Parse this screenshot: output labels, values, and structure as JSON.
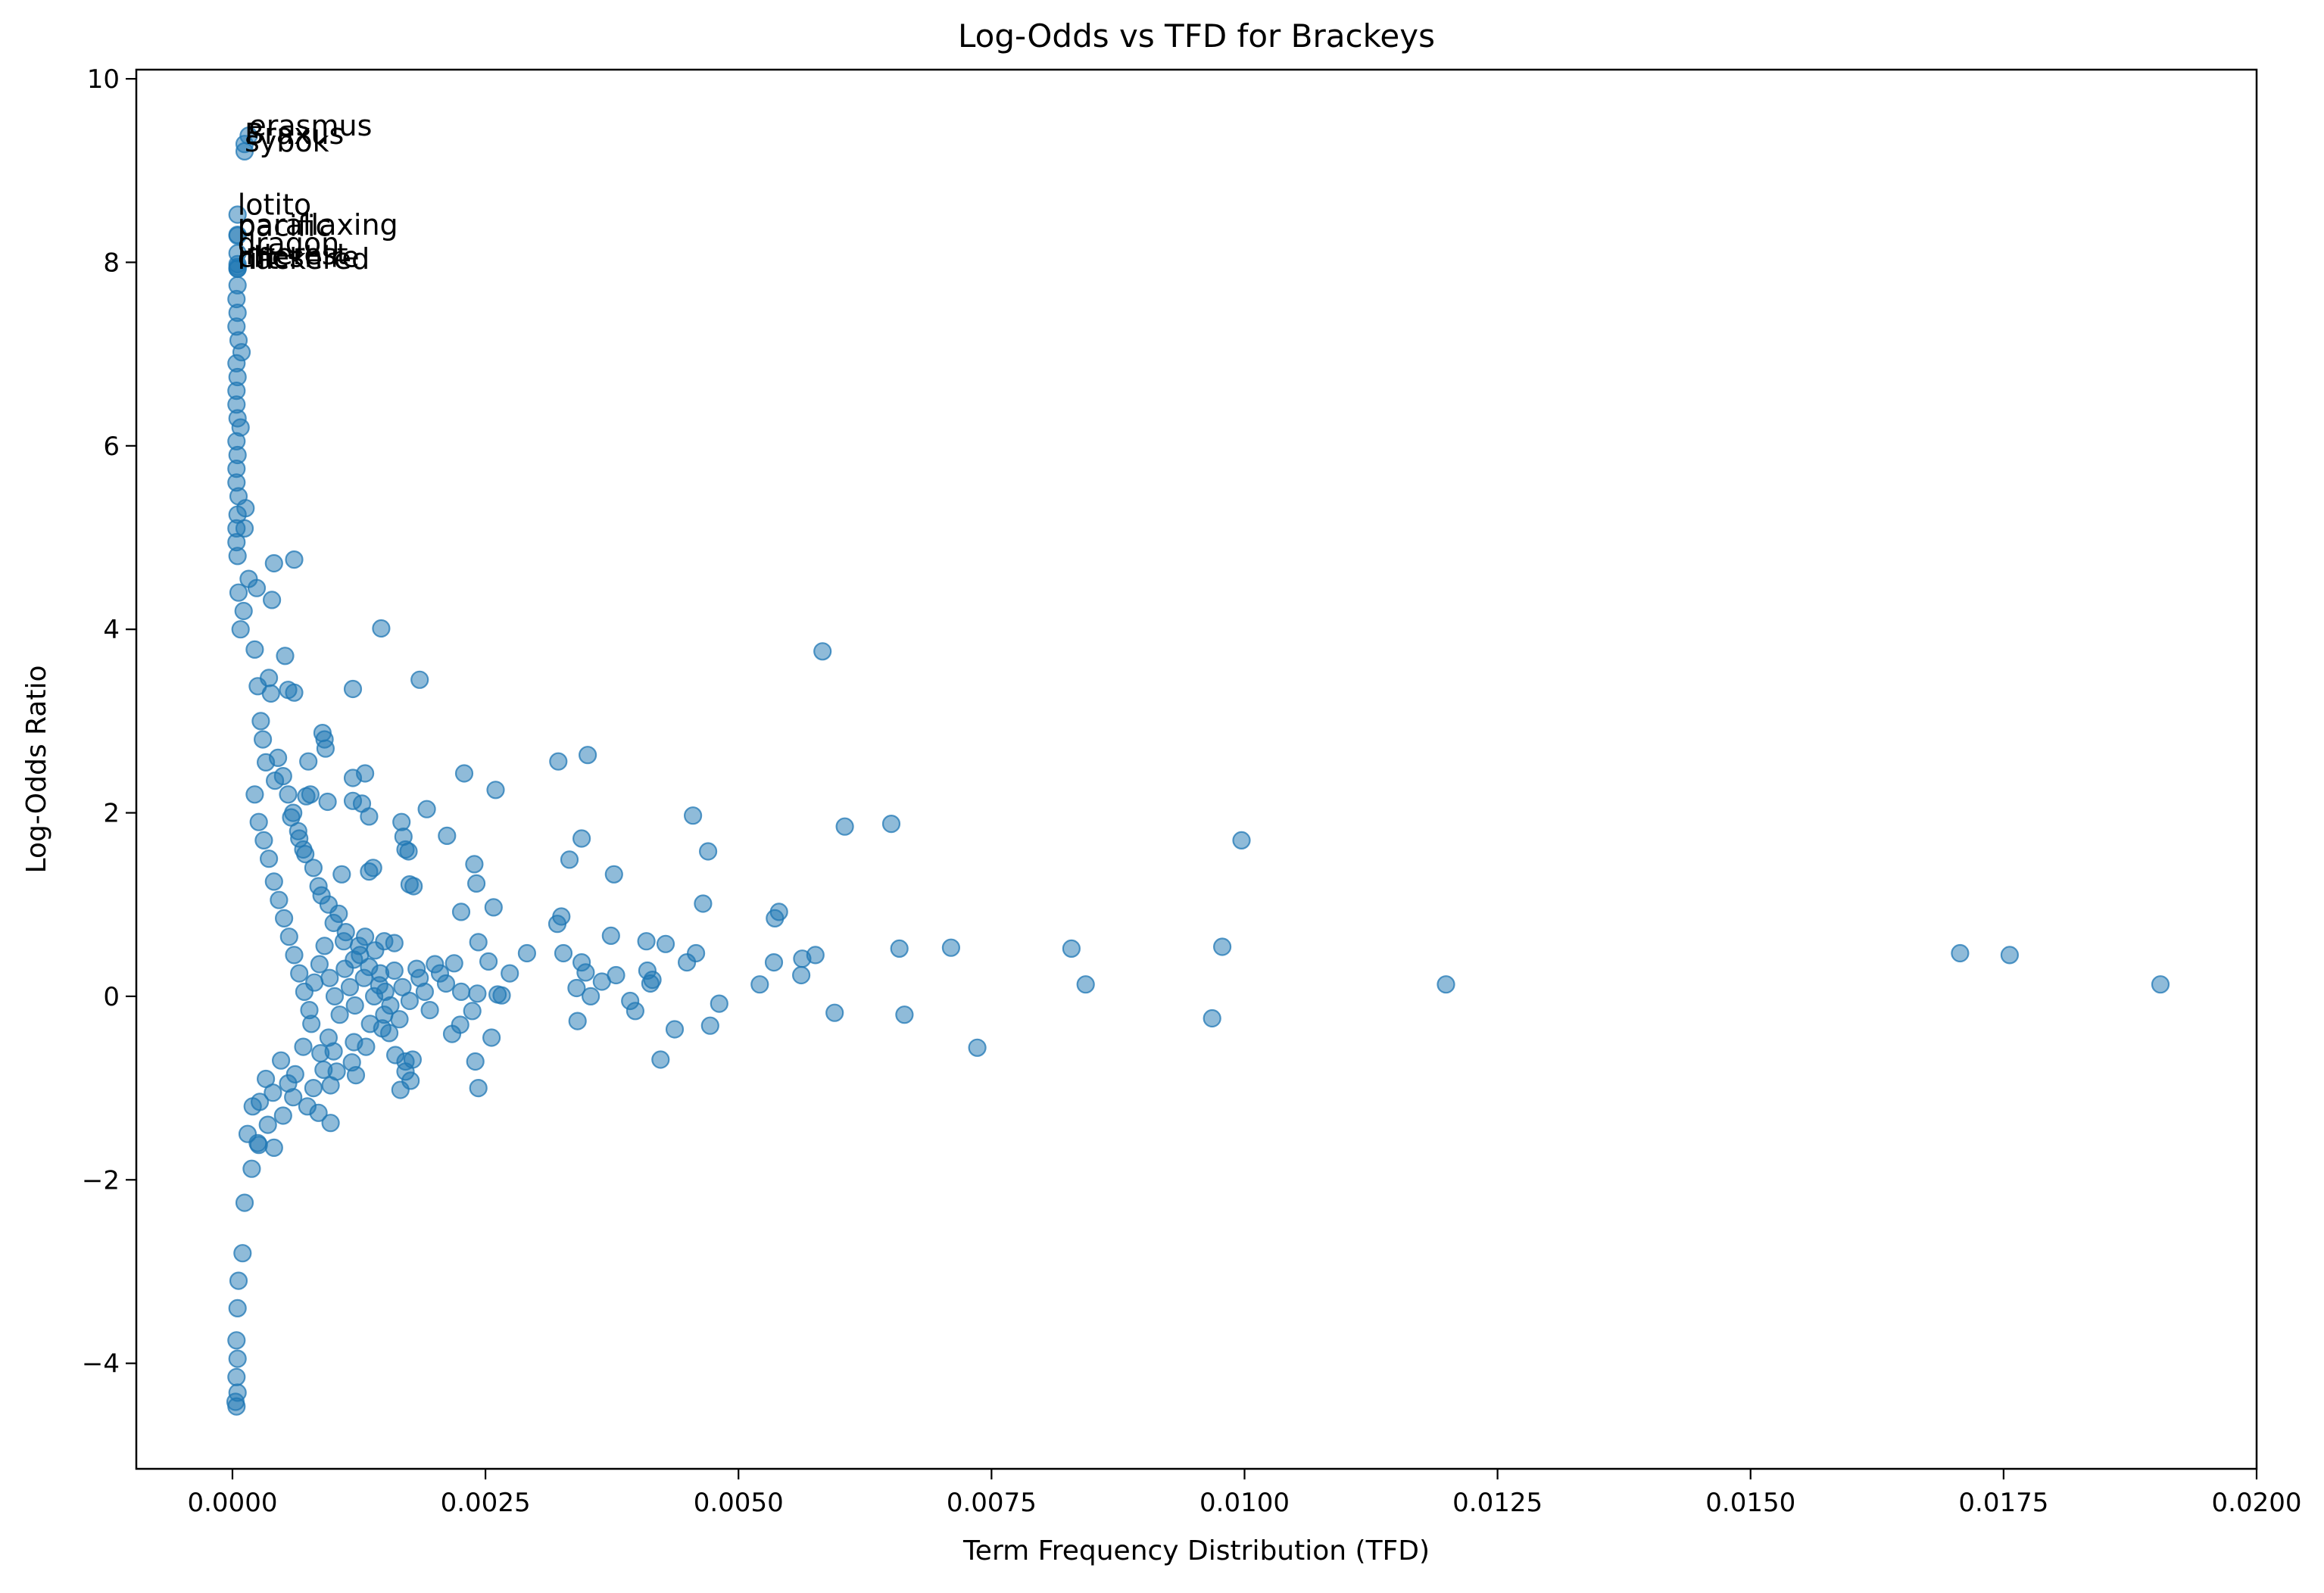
{
  "chart_data": {
    "type": "scatter",
    "title": "Log-Odds vs TFD for Brackeys",
    "xlabel": "Term Frequency Distribution (TFD)",
    "ylabel": "Log-Odds Ratio",
    "xlim": [
      -0.00095,
      0.02
    ],
    "ylim": [
      -5.15,
      10.1
    ],
    "xticks": [
      0.0,
      0.0025,
      0.005,
      0.0075,
      0.01,
      0.0125,
      0.015,
      0.0175,
      0.02
    ],
    "xtick_labels": [
      "0.0000",
      "0.0025",
      "0.0050",
      "0.0075",
      "0.0100",
      "0.0125",
      "0.0150",
      "0.0175",
      "0.0200"
    ],
    "yticks": [
      -4,
      -2,
      0,
      2,
      4,
      6,
      8,
      10
    ],
    "ytick_labels": [
      "−4",
      "−2",
      "0",
      "2",
      "4",
      "6",
      "8",
      "10"
    ],
    "grid": false,
    "color": "#1f77b4",
    "alpha": 0.5,
    "annotations": [
      {
        "text": "erasmus",
        "x": 0.00016,
        "y": 9.38
      },
      {
        "text": "Braxus",
        "x": 0.00012,
        "y": 9.29
      },
      {
        "text": "sybok",
        "x": 0.00012,
        "y": 9.21
      },
      {
        "text": "lotito",
        "x": 5e-05,
        "y": 8.52
      },
      {
        "text": "parallaxing",
        "x": 5e-05,
        "y": 8.3
      },
      {
        "text": "pacific",
        "x": 5e-05,
        "y": 8.29
      },
      {
        "text": "dragon",
        "x": 5e-05,
        "y": 8.1
      },
      {
        "text": "interest",
        "x": 5e-05,
        "y": 7.98
      },
      {
        "text": "cheshire",
        "x": 5e-05,
        "y": 7.95
      },
      {
        "text": "hackered",
        "x": 5e-05,
        "y": 7.93
      },
      {
        "text": "rift",
        "x": 5e-05,
        "y": 7.93
      }
    ],
    "series": [
      {
        "points": [
          [
            0.00016,
            9.38
          ],
          [
            0.00012,
            9.29
          ],
          [
            0.00012,
            9.21
          ],
          [
            5e-05,
            8.52
          ],
          [
            5e-05,
            8.3
          ],
          [
            5e-05,
            8.29
          ],
          [
            5e-05,
            8.1
          ],
          [
            5e-05,
            7.98
          ],
          [
            5e-05,
            7.95
          ],
          [
            5e-05,
            7.93
          ],
          [
            5e-05,
            7.93
          ],
          [
            5e-05,
            7.75
          ],
          [
            4e-05,
            7.6
          ],
          [
            5e-05,
            7.45
          ],
          [
            4e-05,
            7.3
          ],
          [
            6e-05,
            7.15
          ],
          [
            9e-05,
            7.02
          ],
          [
            4e-05,
            6.9
          ],
          [
            5e-05,
            6.75
          ],
          [
            4e-05,
            6.6
          ],
          [
            4e-05,
            6.45
          ],
          [
            5e-05,
            6.3
          ],
          [
            8e-05,
            6.2
          ],
          [
            4e-05,
            6.05
          ],
          [
            5e-05,
            5.9
          ],
          [
            4e-05,
            5.75
          ],
          [
            4e-05,
            5.6
          ],
          [
            6e-05,
            5.45
          ],
          [
            0.00013,
            5.32
          ],
          [
            5e-05,
            5.25
          ],
          [
            4e-05,
            5.1
          ],
          [
            0.00012,
            5.1
          ],
          [
            4e-05,
            4.95
          ],
          [
            5e-05,
            4.8
          ],
          [
            0.00041,
            4.72
          ],
          [
            0.00061,
            4.76
          ],
          [
            0.00016,
            4.55
          ],
          [
            0.00024,
            4.45
          ],
          [
            6e-05,
            4.4
          ],
          [
            0.00039,
            4.32
          ],
          [
            0.00011,
            4.2
          ],
          [
            8e-05,
            4.0
          ],
          [
            0.00147,
            4.01
          ],
          [
            0.00022,
            3.78
          ],
          [
            0.00052,
            3.71
          ],
          [
            0.00185,
            3.45
          ],
          [
            0.00119,
            3.35
          ],
          [
            0.00055,
            3.34
          ],
          [
            0.00061,
            3.31
          ],
          [
            0.00025,
            3.38
          ],
          [
            0.00036,
            3.47
          ],
          [
            0.00038,
            3.3
          ],
          [
            0.00583,
            3.76
          ],
          [
            0.00089,
            2.87
          ],
          [
            0.00091,
            2.8
          ],
          [
            0.00092,
            2.7
          ],
          [
            0.00075,
            2.56
          ],
          [
            0.00131,
            2.43
          ],
          [
            0.00119,
            2.38
          ],
          [
            0.00229,
            2.43
          ],
          [
            0.0026,
            2.25
          ],
          [
            0.00322,
            2.56
          ],
          [
            0.00351,
            2.63
          ],
          [
            0.00077,
            2.2
          ],
          [
            0.00073,
            2.18
          ],
          [
            0.00094,
            2.12
          ],
          [
            0.00119,
            2.13
          ],
          [
            0.00128,
            2.1
          ],
          [
            0.00135,
            1.96
          ],
          [
            0.00192,
            2.04
          ],
          [
            0.00167,
            1.9
          ],
          [
            0.00212,
            1.75
          ],
          [
            0.00169,
            1.74
          ],
          [
            0.00171,
            1.6
          ],
          [
            0.00174,
            1.58
          ],
          [
            0.00333,
            1.49
          ],
          [
            0.00345,
            1.72
          ],
          [
            0.00377,
            1.33
          ],
          [
            0.00455,
            1.97
          ],
          [
            0.0047,
            1.58
          ],
          [
            0.00605,
            1.85
          ],
          [
            0.00651,
            1.88
          ],
          [
            0.00997,
            1.7
          ],
          [
            0.00108,
            1.33
          ],
          [
            0.00139,
            1.4
          ],
          [
            0.00135,
            1.36
          ],
          [
            0.00175,
            1.22
          ],
          [
            0.00179,
            1.2
          ],
          [
            0.00239,
            1.44
          ],
          [
            0.00241,
            1.23
          ],
          [
            0.00258,
            0.97
          ],
          [
            0.00226,
            0.92
          ],
          [
            0.00325,
            0.87
          ],
          [
            0.00321,
            0.79
          ],
          [
            0.00374,
            0.66
          ],
          [
            0.00409,
            0.6
          ],
          [
            0.00428,
            0.57
          ],
          [
            0.00465,
            1.01
          ],
          [
            0.00536,
            0.85
          ],
          [
            0.0054,
            0.92
          ],
          [
            0.00449,
            0.37
          ],
          [
            0.00458,
            0.47
          ],
          [
            0.00576,
            0.45
          ],
          [
            0.00563,
            0.41
          ],
          [
            0.00659,
            0.52
          ],
          [
            0.0071,
            0.53
          ],
          [
            0.00829,
            0.52
          ],
          [
            0.00978,
            0.54
          ],
          [
            0.01707,
            0.47
          ],
          [
            0.01756,
            0.45
          ],
          [
            0.0015,
            0.6
          ],
          [
            0.0016,
            0.58
          ],
          [
            0.002,
            0.35
          ],
          [
            0.00219,
            0.36
          ],
          [
            0.00243,
            0.59
          ],
          [
            0.00253,
            0.38
          ],
          [
            0.00274,
            0.25
          ],
          [
            0.00291,
            0.47
          ],
          [
            0.00327,
            0.47
          ],
          [
            0.00345,
            0.37
          ],
          [
            0.00379,
            0.23
          ],
          [
            0.00349,
            0.26
          ],
          [
            0.00365,
            0.16
          ],
          [
            0.0041,
            0.28
          ],
          [
            0.00415,
            0.18
          ],
          [
            0.00413,
            0.14
          ],
          [
            0.00535,
            0.37
          ],
          [
            0.00562,
            0.23
          ],
          [
            0.00521,
            0.13
          ],
          [
            0.00843,
            0.13
          ],
          [
            0.01199,
            0.13
          ],
          [
            0.01905,
            0.13
          ],
          [
            0.00211,
            0.14
          ],
          [
            0.00226,
            0.05
          ],
          [
            0.00242,
            0.03
          ],
          [
            0.00262,
            0.02
          ],
          [
            0.00266,
            0.01
          ],
          [
            0.0034,
            0.09
          ],
          [
            0.00354,
            0.0
          ],
          [
            0.00393,
            -0.05
          ],
          [
            0.00481,
            -0.08
          ],
          [
            0.00341,
            -0.27
          ],
          [
            0.00398,
            -0.16
          ],
          [
            0.00437,
            -0.36
          ],
          [
            0.00472,
            -0.32
          ],
          [
            0.00237,
            -0.16
          ],
          [
            0.00225,
            -0.31
          ],
          [
            0.00217,
            -0.41
          ],
          [
            0.00256,
            -0.45
          ],
          [
            0.0024,
            -0.71
          ],
          [
            0.00423,
            -0.69
          ],
          [
            0.00595,
            -0.18
          ],
          [
            0.00664,
            -0.2
          ],
          [
            0.00736,
            -0.56
          ],
          [
            0.00968,
            -0.24
          ],
          [
            0.00243,
            -1.0
          ],
          [
            0.00161,
            -0.64
          ],
          [
            0.00171,
            -0.71
          ],
          [
            0.00178,
            -0.69
          ],
          [
            0.00171,
            -0.82
          ],
          [
            0.00176,
            -0.92
          ],
          [
            0.00166,
            -1.02
          ],
          [
            0.00122,
            -0.86
          ],
          [
            0.00097,
            -0.97
          ],
          [
            0.00085,
            -1.27
          ],
          [
            0.00097,
            -1.38
          ],
          [
            0.00074,
            -1.2
          ],
          [
            0.00041,
            -1.65
          ],
          [
            0.00026,
            -1.62
          ],
          [
            0.00019,
            -1.88
          ],
          [
            0.00012,
            -2.25
          ],
          [
            0.0001,
            -2.8
          ],
          [
            6e-05,
            -3.1
          ],
          [
            5e-05,
            -3.4
          ],
          [
            4e-05,
            -3.75
          ],
          [
            5e-05,
            -3.95
          ],
          [
            4e-05,
            -4.15
          ],
          [
            5e-05,
            -4.32
          ],
          [
            4e-05,
            -4.47
          ],
          [
            3e-05,
            -4.42
          ],
          [
            0.0003,
            2.8
          ],
          [
            0.00045,
            2.6
          ],
          [
            0.0005,
            2.4
          ],
          [
            0.00055,
            2.2
          ],
          [
            0.0006,
            2.0
          ],
          [
            0.00065,
            1.8
          ],
          [
            0.0007,
            1.6
          ],
          [
            0.0008,
            1.4
          ],
          [
            0.00085,
            1.2
          ],
          [
            0.00095,
            1.0
          ],
          [
            0.001,
            0.8
          ],
          [
            0.0011,
            0.6
          ],
          [
            0.0012,
            0.4
          ],
          [
            0.0013,
            0.2
          ],
          [
            0.0014,
            0.0
          ],
          [
            0.0015,
            -0.2
          ],
          [
            0.00155,
            -0.4
          ],
          [
            0.0012,
            -0.5
          ],
          [
            0.001,
            -0.6
          ],
          [
            0.0009,
            -0.8
          ],
          [
            0.0008,
            -1.0
          ],
          [
            0.0006,
            -1.1
          ],
          [
            0.0005,
            -1.3
          ],
          [
            0.00035,
            -1.4
          ],
          [
            0.00025,
            -1.6
          ],
          [
            0.0002,
            -1.2
          ],
          [
            0.00015,
            -1.5
          ],
          [
            0.00028,
            3.0
          ],
          [
            0.00033,
            2.55
          ],
          [
            0.00042,
            2.35
          ],
          [
            0.00058,
            1.95
          ],
          [
            0.00066,
            1.72
          ],
          [
            0.00072,
            1.55
          ],
          [
            0.00088,
            1.1
          ],
          [
            0.00105,
            0.9
          ],
          [
            0.00112,
            0.7
          ],
          [
            0.00125,
            0.55
          ],
          [
            0.00135,
            0.32
          ],
          [
            0.00145,
            0.12
          ],
          [
            0.0016,
            0.28
          ],
          [
            0.00168,
            0.1
          ],
          [
            0.00182,
            0.3
          ],
          [
            0.0019,
            0.05
          ],
          [
            0.00175,
            -0.05
          ],
          [
            0.00165,
            -0.25
          ],
          [
            0.00148,
            -0.35
          ],
          [
            0.00132,
            -0.55
          ],
          [
            0.00118,
            -0.72
          ],
          [
            0.00103,
            -0.82
          ],
          [
            0.00095,
            -0.45
          ],
          [
            0.00087,
            -0.62
          ],
          [
            0.00078,
            -0.3
          ],
          [
            0.0007,
            -0.55
          ],
          [
            0.00062,
            -0.85
          ],
          [
            0.00055,
            -0.95
          ],
          [
            0.00048,
            -0.7
          ],
          [
            0.0004,
            -1.05
          ],
          [
            0.00033,
            -0.9
          ],
          [
            0.00027,
            -1.15
          ],
          [
            0.00022,
            2.2
          ],
          [
            0.00026,
            1.9
          ],
          [
            0.00031,
            1.7
          ],
          [
            0.00036,
            1.5
          ],
          [
            0.00041,
            1.25
          ],
          [
            0.00046,
            1.05
          ],
          [
            0.00051,
            0.85
          ],
          [
            0.00056,
            0.65
          ],
          [
            0.00061,
            0.45
          ],
          [
            0.00066,
            0.25
          ],
          [
            0.00071,
            0.05
          ],
          [
            0.00076,
            -0.15
          ],
          [
            0.00081,
            0.15
          ],
          [
            0.00086,
            0.35
          ],
          [
            0.00091,
            0.55
          ],
          [
            0.00096,
            0.2
          ],
          [
            0.00101,
            0.0
          ],
          [
            0.00106,
            -0.2
          ],
          [
            0.00111,
            0.3
          ],
          [
            0.00116,
            0.1
          ],
          [
            0.00121,
            -0.1
          ],
          [
            0.00126,
            0.45
          ],
          [
            0.00131,
            0.65
          ],
          [
            0.00136,
            -0.3
          ],
          [
            0.00141,
            0.5
          ],
          [
            0.00146,
            0.25
          ],
          [
            0.00151,
            0.05
          ],
          [
            0.00156,
            -0.1
          ],
          [
            0.00185,
            0.2
          ],
          [
            0.00195,
            -0.15
          ],
          [
            0.00205,
            0.25
          ]
        ]
      }
    ]
  }
}
